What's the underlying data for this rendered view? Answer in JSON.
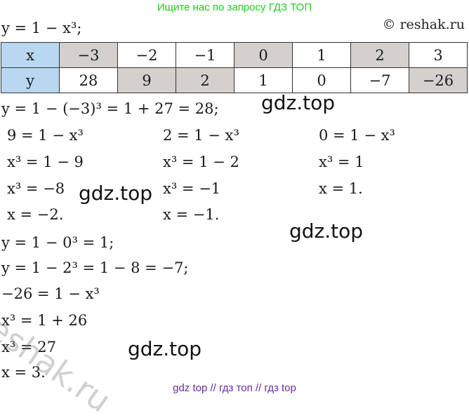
{
  "banner_top": "Ищите нас по запросу ГДЗ ТОП",
  "copyright": "© reshak.ru",
  "function_line": "y = 1 − x³;",
  "table": {
    "x_label": "x",
    "y_label": "y",
    "x_values": [
      "−3",
      "−2",
      "−1",
      "0",
      "1",
      "2",
      "3"
    ],
    "y_values": [
      "28",
      "9",
      "2",
      "1",
      "0",
      "−7",
      "−26"
    ]
  },
  "lines": {
    "l1": "y = 1 − (−3)³ = 1 + 27 = 28;",
    "c1a": "9 = 1 − x³",
    "c1b": "x³ = 1 − 9",
    "c1c": "x³ = −8",
    "c1d": "x = −2.",
    "c2a": "2 = 1 − x³",
    "c2b": "x³ = 1 − 2",
    "c2c": "x³ = −1",
    "c2d": "x = −1.",
    "c3a": "0 = 1 − x³",
    "c3b": "x³ = 1",
    "c3c": "x = 1.",
    "l2": "y = 1 − 0³ = 1;",
    "l3": "y = 1 − 2³ = 1 − 8 = −7;",
    "l4": "−26 = 1 − x³",
    "l5": "x³ = 1 + 26",
    "l6": "x³ = 27",
    "l7": "x = 3."
  },
  "watermarks": {
    "w1": "gdz.top",
    "w2": "gdz.top",
    "w3": "gdz.top",
    "w4": "gdz.top",
    "diag": "reshak.ru"
  },
  "banner_bottom": "gdz top  //  гдз топ  //  гдз top",
  "colors": {
    "banner_top": "#22cc22",
    "banner_bottom": "#6a2aa0",
    "header_cell": "#b8d8f2",
    "gray_cell": "#d4d0ce"
  }
}
